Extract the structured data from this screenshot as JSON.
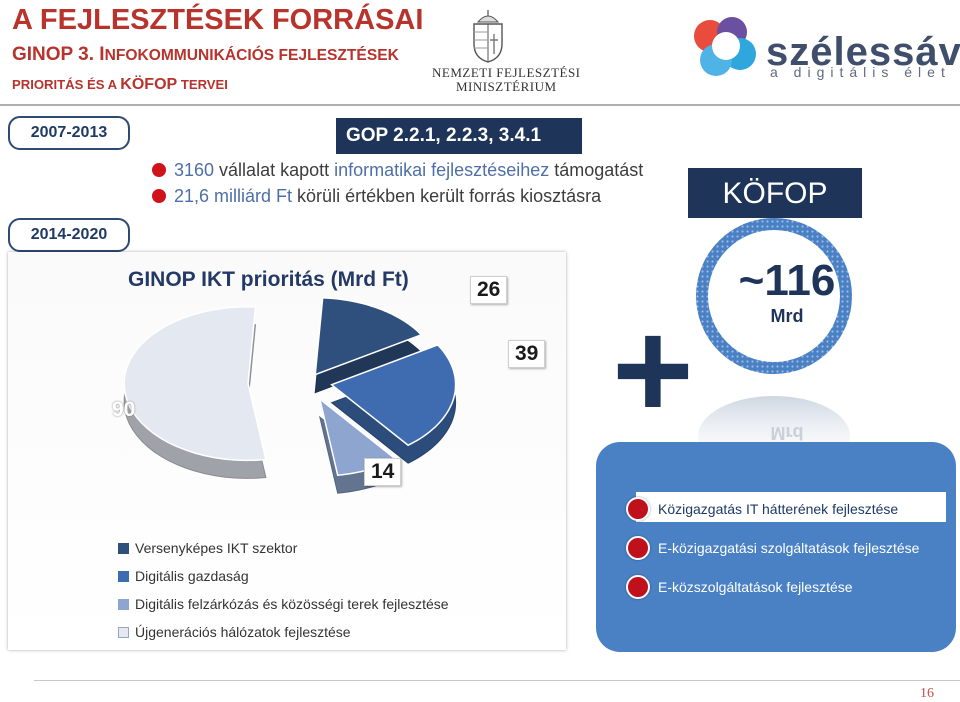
{
  "header": {
    "title_line1": "A FEJLESZTÉSEK FORRÁSAI",
    "title_line2_a": "GINOP 3. I",
    "title_line2_b": "NFOKOMMUNIKÁCIÓS FEJLESZTÉSEK",
    "title_line3_a": "PRIORITÁS ÉS A ",
    "title_line3_b": "KÖFOP",
    "title_line3_c": " TERVEI",
    "ministry_line1": "NEMZETI FEJLESZTÉSI",
    "ministry_line2": "MINISZTÉRIUM",
    "logo_text": "szélessáv",
    "logo_tagline": "a digitális élet"
  },
  "periods": {
    "p1": "2007-2013",
    "p2": "2014-2020"
  },
  "gop_label": "GOP 2.2.1, 2.2.3, 3.4.1",
  "bullets": [
    {
      "number": "3160",
      "text": " vállalat kapott ",
      "hl": "informatikai fejlesztéseihez",
      "tail": " támogatást"
    },
    {
      "number": "21,6 milliárd Ft",
      "text": " körüli értékben került forrás kiosztásra",
      "hl": "",
      "tail": ""
    }
  ],
  "kofop": {
    "label": "KÖFOP",
    "amount": "~116",
    "unit": "Mrd",
    "reflection": "Mrd",
    "items": [
      "Közigazgatás IT hátterének fejlesztése",
      "E-közigazgatási szolgáltatások fejlesztése",
      "E-közszolgáltatások fejlesztése"
    ]
  },
  "plus_sign": "+",
  "chart_data": {
    "type": "pie",
    "title": "GINOP IKT prioritás (Mrd Ft)",
    "categories": [
      "Versenyképes IKT szektor",
      "Digitális gazdaság",
      "Digitális felzárkózás és közösségi terek fejlesztése",
      "Újgenerációs hálózatok fejlesztése"
    ],
    "values": [
      26,
      39,
      14,
      90
    ],
    "colors": [
      "#2f4f7c",
      "#3f6cb0",
      "#8ea6cf",
      "#e4e8f1"
    ],
    "legend_position": "bottom-left"
  },
  "page_number": "16"
}
